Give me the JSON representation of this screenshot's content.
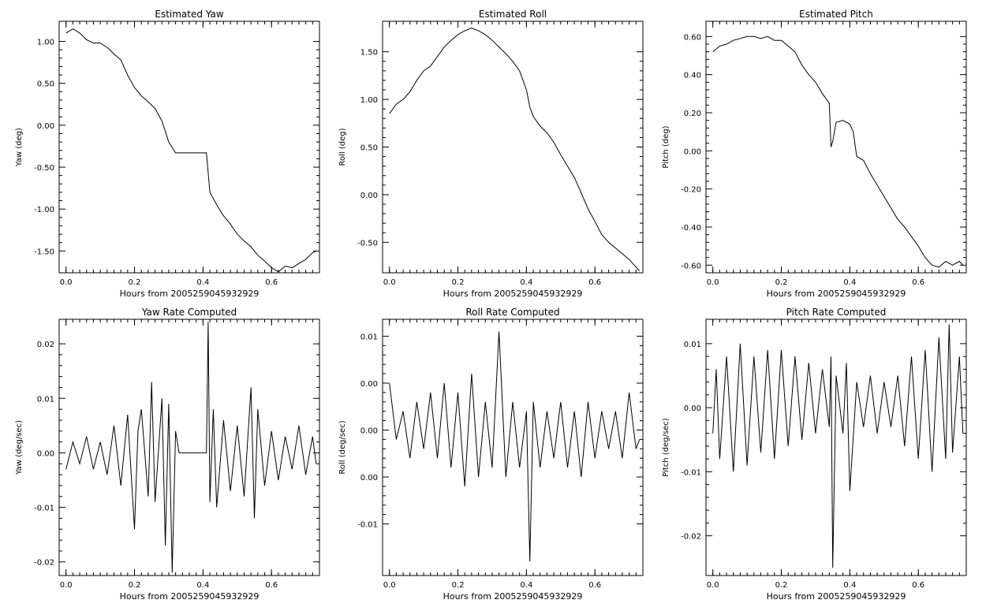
{
  "colors": {
    "background": "#ffffff",
    "ink": "#000000"
  },
  "chart_data": [
    {
      "type": "line",
      "title": "Estimated Yaw",
      "xlabel": "Hours from 2005259045932929",
      "ylabel": "Yaw (deg)",
      "xlim": [
        -0.02,
        0.74
      ],
      "ylim": [
        -1.76,
        1.24
      ],
      "xticks": [
        "0.0",
        "0.2",
        "0.4",
        "0.6"
      ],
      "yticks": [
        "1.00",
        "0.50",
        "0.00",
        "-0.50",
        "-1.00",
        "-1.50"
      ],
      "grid": false,
      "series": [
        {
          "x": [
            0.0,
            0.02,
            0.04,
            0.06,
            0.08,
            0.1,
            0.12,
            0.14,
            0.16,
            0.18,
            0.2,
            0.22,
            0.24,
            0.26,
            0.28,
            0.3,
            0.32,
            0.34,
            0.36,
            0.38,
            0.4,
            0.41,
            0.42,
            0.44,
            0.46,
            0.48,
            0.5,
            0.52,
            0.54,
            0.56,
            0.58,
            0.6,
            0.62,
            0.64,
            0.66,
            0.68,
            0.7,
            0.72,
            0.73
          ],
          "y": [
            1.1,
            1.15,
            1.1,
            1.02,
            0.98,
            0.98,
            0.93,
            0.85,
            0.78,
            0.6,
            0.45,
            0.35,
            0.28,
            0.2,
            0.05,
            -0.2,
            -0.33,
            -0.33,
            -0.33,
            -0.33,
            -0.33,
            -0.33,
            -0.8,
            -0.95,
            -1.08,
            -1.18,
            -1.3,
            -1.38,
            -1.45,
            -1.55,
            -1.62,
            -1.7,
            -1.75,
            -1.68,
            -1.7,
            -1.65,
            -1.6,
            -1.52,
            -1.5
          ]
        }
      ]
    },
    {
      "type": "line",
      "title": "Estimated Roll",
      "xlabel": "Hours from 2005259045932929",
      "ylabel": "Roll (deg)",
      "xlim": [
        -0.02,
        0.74
      ],
      "ylim": [
        -0.82,
        1.82
      ],
      "xticks": [
        "0.0",
        "0.2",
        "0.4",
        "0.6"
      ],
      "yticks": [
        "1.50",
        "1.00",
        "0.50",
        "0.00",
        "-0.50"
      ],
      "grid": false,
      "series": [
        {
          "x": [
            0.0,
            0.02,
            0.04,
            0.06,
            0.08,
            0.1,
            0.12,
            0.14,
            0.16,
            0.18,
            0.2,
            0.22,
            0.24,
            0.26,
            0.28,
            0.3,
            0.32,
            0.34,
            0.36,
            0.38,
            0.4,
            0.41,
            0.42,
            0.44,
            0.46,
            0.48,
            0.5,
            0.52,
            0.54,
            0.56,
            0.58,
            0.6,
            0.62,
            0.64,
            0.66,
            0.68,
            0.7,
            0.72,
            0.73
          ],
          "y": [
            0.85,
            0.95,
            1.0,
            1.08,
            1.2,
            1.3,
            1.35,
            1.45,
            1.55,
            1.62,
            1.68,
            1.72,
            1.75,
            1.72,
            1.68,
            1.62,
            1.55,
            1.48,
            1.4,
            1.3,
            1.1,
            0.92,
            0.82,
            0.72,
            0.65,
            0.55,
            0.42,
            0.3,
            0.18,
            0.02,
            -0.15,
            -0.28,
            -0.42,
            -0.5,
            -0.56,
            -0.62,
            -0.68,
            -0.76,
            -0.8
          ]
        }
      ]
    },
    {
      "type": "line",
      "title": "Estimated Pitch",
      "xlabel": "Hours from 2005259045932929",
      "ylabel": "Pitch (deg)",
      "xlim": [
        -0.02,
        0.74
      ],
      "ylim": [
        -0.64,
        0.68
      ],
      "xticks": [
        "0.0",
        "0.2",
        "0.4",
        "0.6"
      ],
      "yticks": [
        "0.60",
        "0.40",
        "0.20",
        "0.00",
        "-0.20",
        "-0.40",
        "-0.60"
      ],
      "grid": false,
      "series": [
        {
          "x": [
            0.0,
            0.02,
            0.04,
            0.06,
            0.08,
            0.1,
            0.12,
            0.14,
            0.16,
            0.18,
            0.2,
            0.22,
            0.24,
            0.26,
            0.28,
            0.3,
            0.32,
            0.34,
            0.345,
            0.35,
            0.36,
            0.38,
            0.4,
            0.41,
            0.42,
            0.44,
            0.46,
            0.48,
            0.5,
            0.52,
            0.54,
            0.56,
            0.58,
            0.6,
            0.62,
            0.64,
            0.66,
            0.68,
            0.7,
            0.72,
            0.73
          ],
          "y": [
            0.52,
            0.55,
            0.56,
            0.58,
            0.59,
            0.6,
            0.6,
            0.59,
            0.6,
            0.58,
            0.58,
            0.55,
            0.52,
            0.45,
            0.4,
            0.36,
            0.3,
            0.25,
            0.02,
            0.05,
            0.15,
            0.16,
            0.14,
            0.1,
            -0.03,
            -0.05,
            -0.12,
            -0.18,
            -0.24,
            -0.3,
            -0.36,
            -0.4,
            -0.45,
            -0.5,
            -0.56,
            -0.6,
            -0.61,
            -0.58,
            -0.6,
            -0.58,
            -0.6
          ]
        }
      ]
    },
    {
      "type": "line",
      "title": "Yaw Rate Computed",
      "xlabel": "Hours from 2005259045932929",
      "ylabel": "Yaw (deg/sec)",
      "xlim": [
        -0.02,
        0.74
      ],
      "ylim": [
        -0.0225,
        0.0245
      ],
      "xticks": [
        "0.0",
        "0.2",
        "0.4",
        "0.6"
      ],
      "yticks": [
        "0.02",
        "0.01",
        "0.00",
        "-0.01",
        "-0.02"
      ],
      "grid": false,
      "series": [
        {
          "x": [
            0.0,
            0.02,
            0.04,
            0.06,
            0.08,
            0.1,
            0.12,
            0.14,
            0.16,
            0.18,
            0.2,
            0.21,
            0.22,
            0.24,
            0.25,
            0.26,
            0.28,
            0.29,
            0.3,
            0.31,
            0.32,
            0.33,
            0.35,
            0.38,
            0.41,
            0.415,
            0.42,
            0.43,
            0.44,
            0.46,
            0.48,
            0.5,
            0.52,
            0.54,
            0.55,
            0.56,
            0.58,
            0.6,
            0.62,
            0.64,
            0.66,
            0.68,
            0.7,
            0.72,
            0.73
          ],
          "y": [
            -0.003,
            0.002,
            -0.002,
            0.003,
            -0.003,
            0.002,
            -0.004,
            0.005,
            -0.006,
            0.007,
            -0.014,
            0.004,
            0.008,
            -0.008,
            0.013,
            -0.009,
            0.01,
            -0.017,
            0.009,
            -0.022,
            0.004,
            0.0,
            0.0,
            0.0,
            0.0,
            0.024,
            -0.009,
            0.008,
            -0.01,
            0.006,
            -0.007,
            0.005,
            -0.008,
            0.012,
            -0.012,
            0.008,
            -0.006,
            0.004,
            -0.005,
            0.003,
            -0.003,
            0.005,
            -0.004,
            0.003,
            -0.002
          ]
        }
      ]
    },
    {
      "type": "line",
      "title": "Roll Rate Computed",
      "xlabel": "Hours from 2005259045932929",
      "ylabel": "Roll (deg/sec)",
      "xlim": [
        -0.02,
        0.74
      ],
      "ylim": [
        -0.0155,
        0.0118
      ],
      "xticks": [
        "0.0",
        "0.2",
        "0.4",
        "0.6"
      ],
      "yticks": [
        "0.01",
        "0.00",
        "0.00",
        "0.00",
        "-0.01"
      ],
      "grid": false,
      "series": [
        {
          "x": [
            0.0,
            0.02,
            0.04,
            0.06,
            0.08,
            0.1,
            0.12,
            0.14,
            0.16,
            0.18,
            0.2,
            0.22,
            0.24,
            0.26,
            0.28,
            0.3,
            0.32,
            0.34,
            0.36,
            0.38,
            0.4,
            0.41,
            0.42,
            0.44,
            0.46,
            0.48,
            0.5,
            0.52,
            0.54,
            0.56,
            0.58,
            0.6,
            0.62,
            0.64,
            0.66,
            0.68,
            0.7,
            0.72,
            0.73
          ],
          "y": [
            0.005,
            -0.001,
            0.002,
            -0.003,
            0.003,
            -0.002,
            0.004,
            -0.003,
            0.005,
            -0.004,
            0.004,
            -0.006,
            0.006,
            -0.005,
            0.003,
            -0.004,
            0.0105,
            -0.005,
            0.003,
            -0.004,
            0.002,
            -0.014,
            0.003,
            -0.004,
            0.002,
            -0.003,
            0.003,
            -0.004,
            0.002,
            -0.005,
            0.003,
            -0.003,
            0.002,
            -0.002,
            0.002,
            -0.003,
            0.004,
            -0.002,
            -0.001
          ]
        }
      ]
    },
    {
      "type": "line",
      "title": "Pitch Rate Computed",
      "xlabel": "Hours from 2005259045932929",
      "ylabel": "Pitch (deg/sec)",
      "xlim": [
        -0.02,
        0.74
      ],
      "ylim": [
        -0.0262,
        0.0138
      ],
      "xticks": [
        "0.0",
        "0.2",
        "0.4",
        "0.6"
      ],
      "yticks": [
        "0.01",
        "0.00",
        "-0.01",
        "-0.02"
      ],
      "grid": false,
      "series": [
        {
          "x": [
            0.0,
            0.01,
            0.02,
            0.04,
            0.06,
            0.08,
            0.1,
            0.12,
            0.14,
            0.16,
            0.18,
            0.2,
            0.22,
            0.24,
            0.26,
            0.28,
            0.3,
            0.32,
            0.34,
            0.345,
            0.35,
            0.36,
            0.38,
            0.39,
            0.4,
            0.42,
            0.44,
            0.46,
            0.48,
            0.5,
            0.52,
            0.54,
            0.56,
            0.58,
            0.6,
            0.62,
            0.64,
            0.66,
            0.68,
            0.69,
            0.7,
            0.72,
            0.73
          ],
          "y": [
            -0.004,
            0.006,
            -0.008,
            0.008,
            -0.01,
            0.01,
            -0.009,
            0.008,
            -0.007,
            0.009,
            -0.008,
            0.009,
            -0.006,
            0.008,
            -0.005,
            0.007,
            -0.004,
            0.006,
            -0.003,
            0.008,
            -0.025,
            0.005,
            -0.004,
            0.007,
            -0.013,
            0.004,
            -0.003,
            0.005,
            -0.004,
            0.004,
            -0.003,
            0.005,
            -0.006,
            0.008,
            -0.008,
            0.009,
            -0.01,
            0.011,
            -0.008,
            0.013,
            -0.007,
            0.008,
            -0.004
          ]
        }
      ]
    }
  ]
}
